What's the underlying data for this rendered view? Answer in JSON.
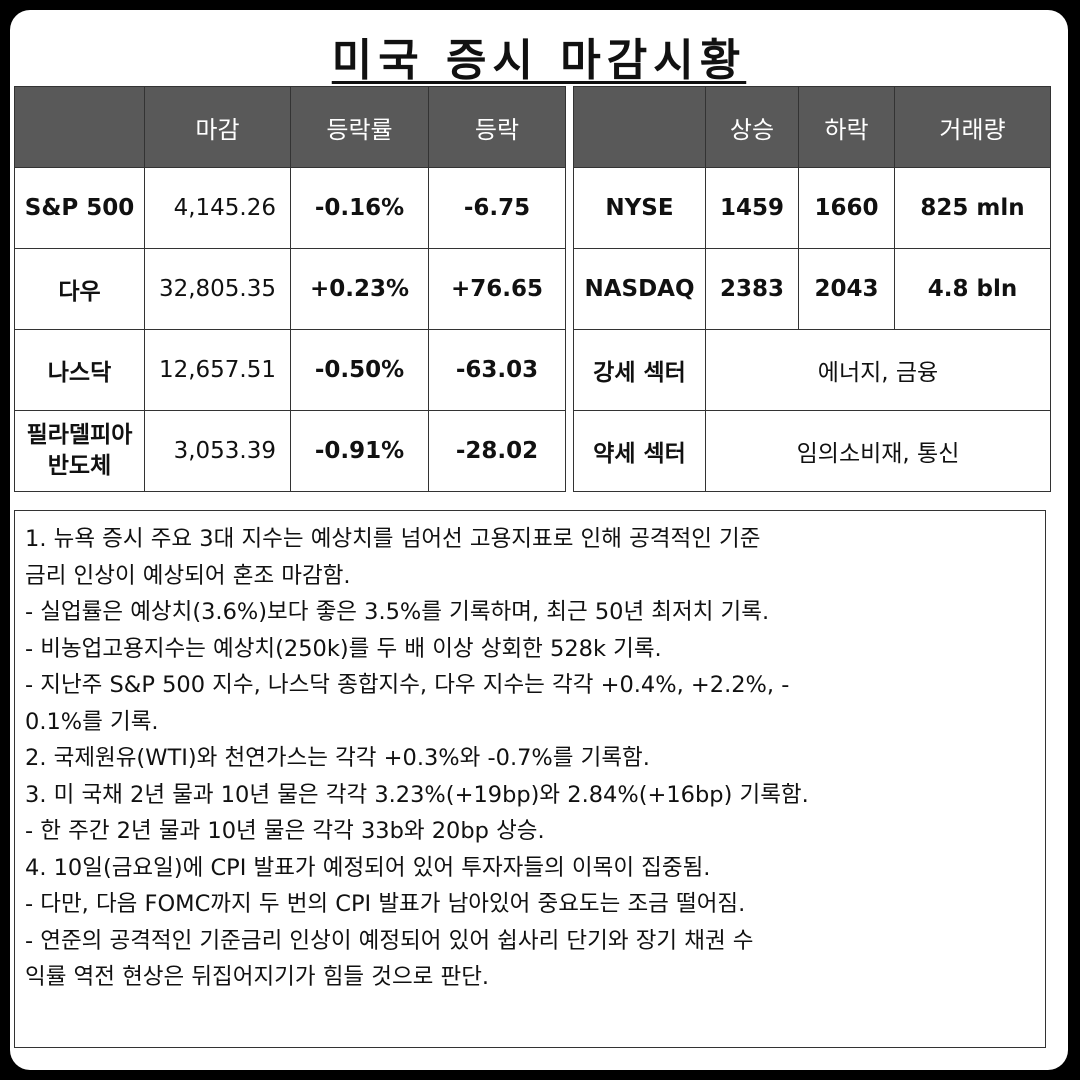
{
  "title": "미국 증시 마감시황",
  "index_table": {
    "headers": [
      "",
      "마감",
      "등락률",
      "등락"
    ],
    "rows": [
      {
        "name": "S&P 500",
        "close": "4,145.26",
        "pct": "-0.16%",
        "chg": "-6.75",
        "dir": "neg"
      },
      {
        "name": "다우",
        "close": "32,805.35",
        "pct": "+0.23%",
        "chg": "+76.65",
        "dir": "pos"
      },
      {
        "name": "나스닥",
        "close": "12,657.51",
        "pct": "-0.50%",
        "chg": "-63.03",
        "dir": "neg"
      },
      {
        "name_line1": "필라델피아",
        "name_line2": "반도체",
        "close": "3,053.39",
        "pct": "-0.91%",
        "chg": "-28.02",
        "dir": "neg"
      }
    ]
  },
  "market_table": {
    "headers": [
      "",
      "상승",
      "하락",
      "거래량"
    ],
    "rows": [
      {
        "exchange": "NYSE",
        "up": "1459",
        "down": "1660",
        "volume": "825 mln"
      },
      {
        "exchange": "NASDAQ",
        "up": "2383",
        "down": "2043",
        "volume": "4.8 bln"
      }
    ],
    "sectors": [
      {
        "label": "강세 섹터",
        "value": "에너지, 금융"
      },
      {
        "label": "약세 섹터",
        "value": "임의소비재, 통신"
      }
    ]
  },
  "colors": {
    "up": "#e11d1d",
    "down": "#1f1fbf",
    "header_bg": "#595959"
  },
  "notes": [
    "1. 뉴욕 증시 주요 3대 지수는 예상치를 넘어선 고용지표로 인해 공격적인 기준",
    "금리 인상이 예상되어 혼조 마감함.",
    "- 실업률은 예상치(3.6%)보다 좋은 3.5%를 기록하며, 최근 50년 최저치 기록.",
    "- 비농업고용지수는 예상치(250k)를 두 배 이상 상회한 528k 기록.",
    "- 지난주 S&P 500 지수, 나스닥 종합지수, 다우 지수는 각각 +0.4%, +2.2%, -",
    "0.1%를 기록.",
    "2. 국제원유(WTI)와 천연가스는 각각 +0.3%와 -0.7%를 기록함.",
    "3. 미 국채 2년 물과 10년 물은 각각 3.23%(+19bp)와 2.84%(+16bp) 기록함.",
    "- 한 주간 2년 물과 10년 물은 각각 33b와 20bp 상승.",
    "4. 10일(금요일)에 CPI 발표가 예정되어 있어 투자자들의 이목이 집중됨.",
    "- 다만, 다음 FOMC까지 두 번의 CPI 발표가 남아있어 중요도는 조금 떨어짐.",
    "- 연준의 공격적인 기준금리 인상이 예정되어 있어 쉽사리 단기와 장기 채권 수",
    "익률 역전 현상은 뒤집어지기가 힘들 것으로 판단."
  ]
}
